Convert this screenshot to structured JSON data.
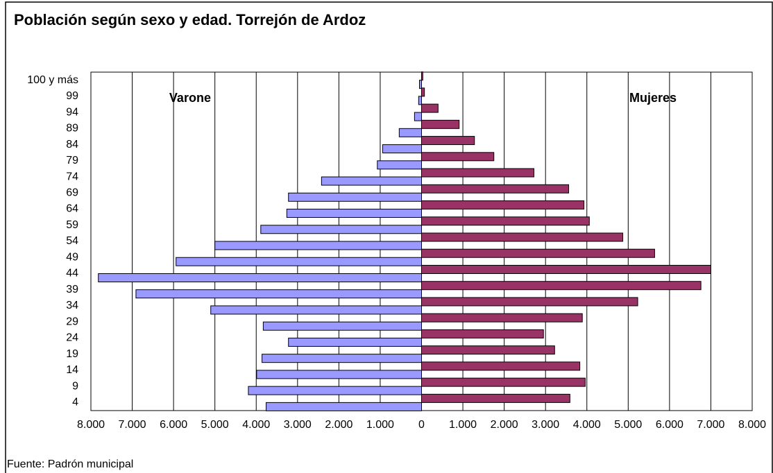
{
  "chart_data": {
    "type": "bar",
    "title": "Población según sexo y edad. Torrejón de Ardoz",
    "source": "Fuente: Padrón municipal",
    "categories": [
      "100 y más",
      "99",
      "94",
      "89",
      "84",
      "79",
      "74",
      "69",
      "64",
      "59",
      "54",
      "49",
      "44",
      "39",
      "34",
      "29",
      "24",
      "19",
      "14",
      "9",
      "4"
    ],
    "series": [
      {
        "name": "Varone",
        "color": "#9999ff",
        "values": [
          -50,
          -70,
          -170,
          -540,
          -940,
          -1070,
          -2420,
          -3220,
          -3260,
          -3890,
          -5000,
          -5940,
          -7820,
          -6910,
          -5100,
          -3830,
          -3220,
          -3860,
          -3990,
          -4190,
          -3760
        ]
      },
      {
        "name": "Mujeres",
        "color": "#993366",
        "values": [
          30,
          70,
          400,
          910,
          1280,
          1750,
          2720,
          3560,
          3930,
          4060,
          4870,
          5640,
          7000,
          6760,
          5230,
          3890,
          2950,
          3220,
          3830,
          3960,
          3590
        ]
      }
    ],
    "xlim": [
      -8000,
      8000
    ],
    "xticks": [
      {
        "value": -8000,
        "label": "8.000"
      },
      {
        "value": -7000,
        "label": "7.000"
      },
      {
        "value": -6000,
        "label": "6.000"
      },
      {
        "value": -5000,
        "label": "5.000"
      },
      {
        "value": -4000,
        "label": "4.000"
      },
      {
        "value": -3000,
        "label": "3.000"
      },
      {
        "value": -2000,
        "label": "2.000"
      },
      {
        "value": -1000,
        "label": "1.000"
      },
      0,
      {
        "value": 1000,
        "label": "1.000"
      },
      {
        "value": 2000,
        "label": "2.000"
      },
      {
        "value": 3000,
        "label": "3.000"
      },
      {
        "value": 4000,
        "label": "4.000"
      },
      {
        "value": 5000,
        "label": "5.000"
      },
      {
        "value": 6000,
        "label": "6.000"
      },
      {
        "value": 7000,
        "label": "7.000"
      },
      {
        "value": 8000,
        "label": "8.000"
      }
    ],
    "grid": true
  }
}
